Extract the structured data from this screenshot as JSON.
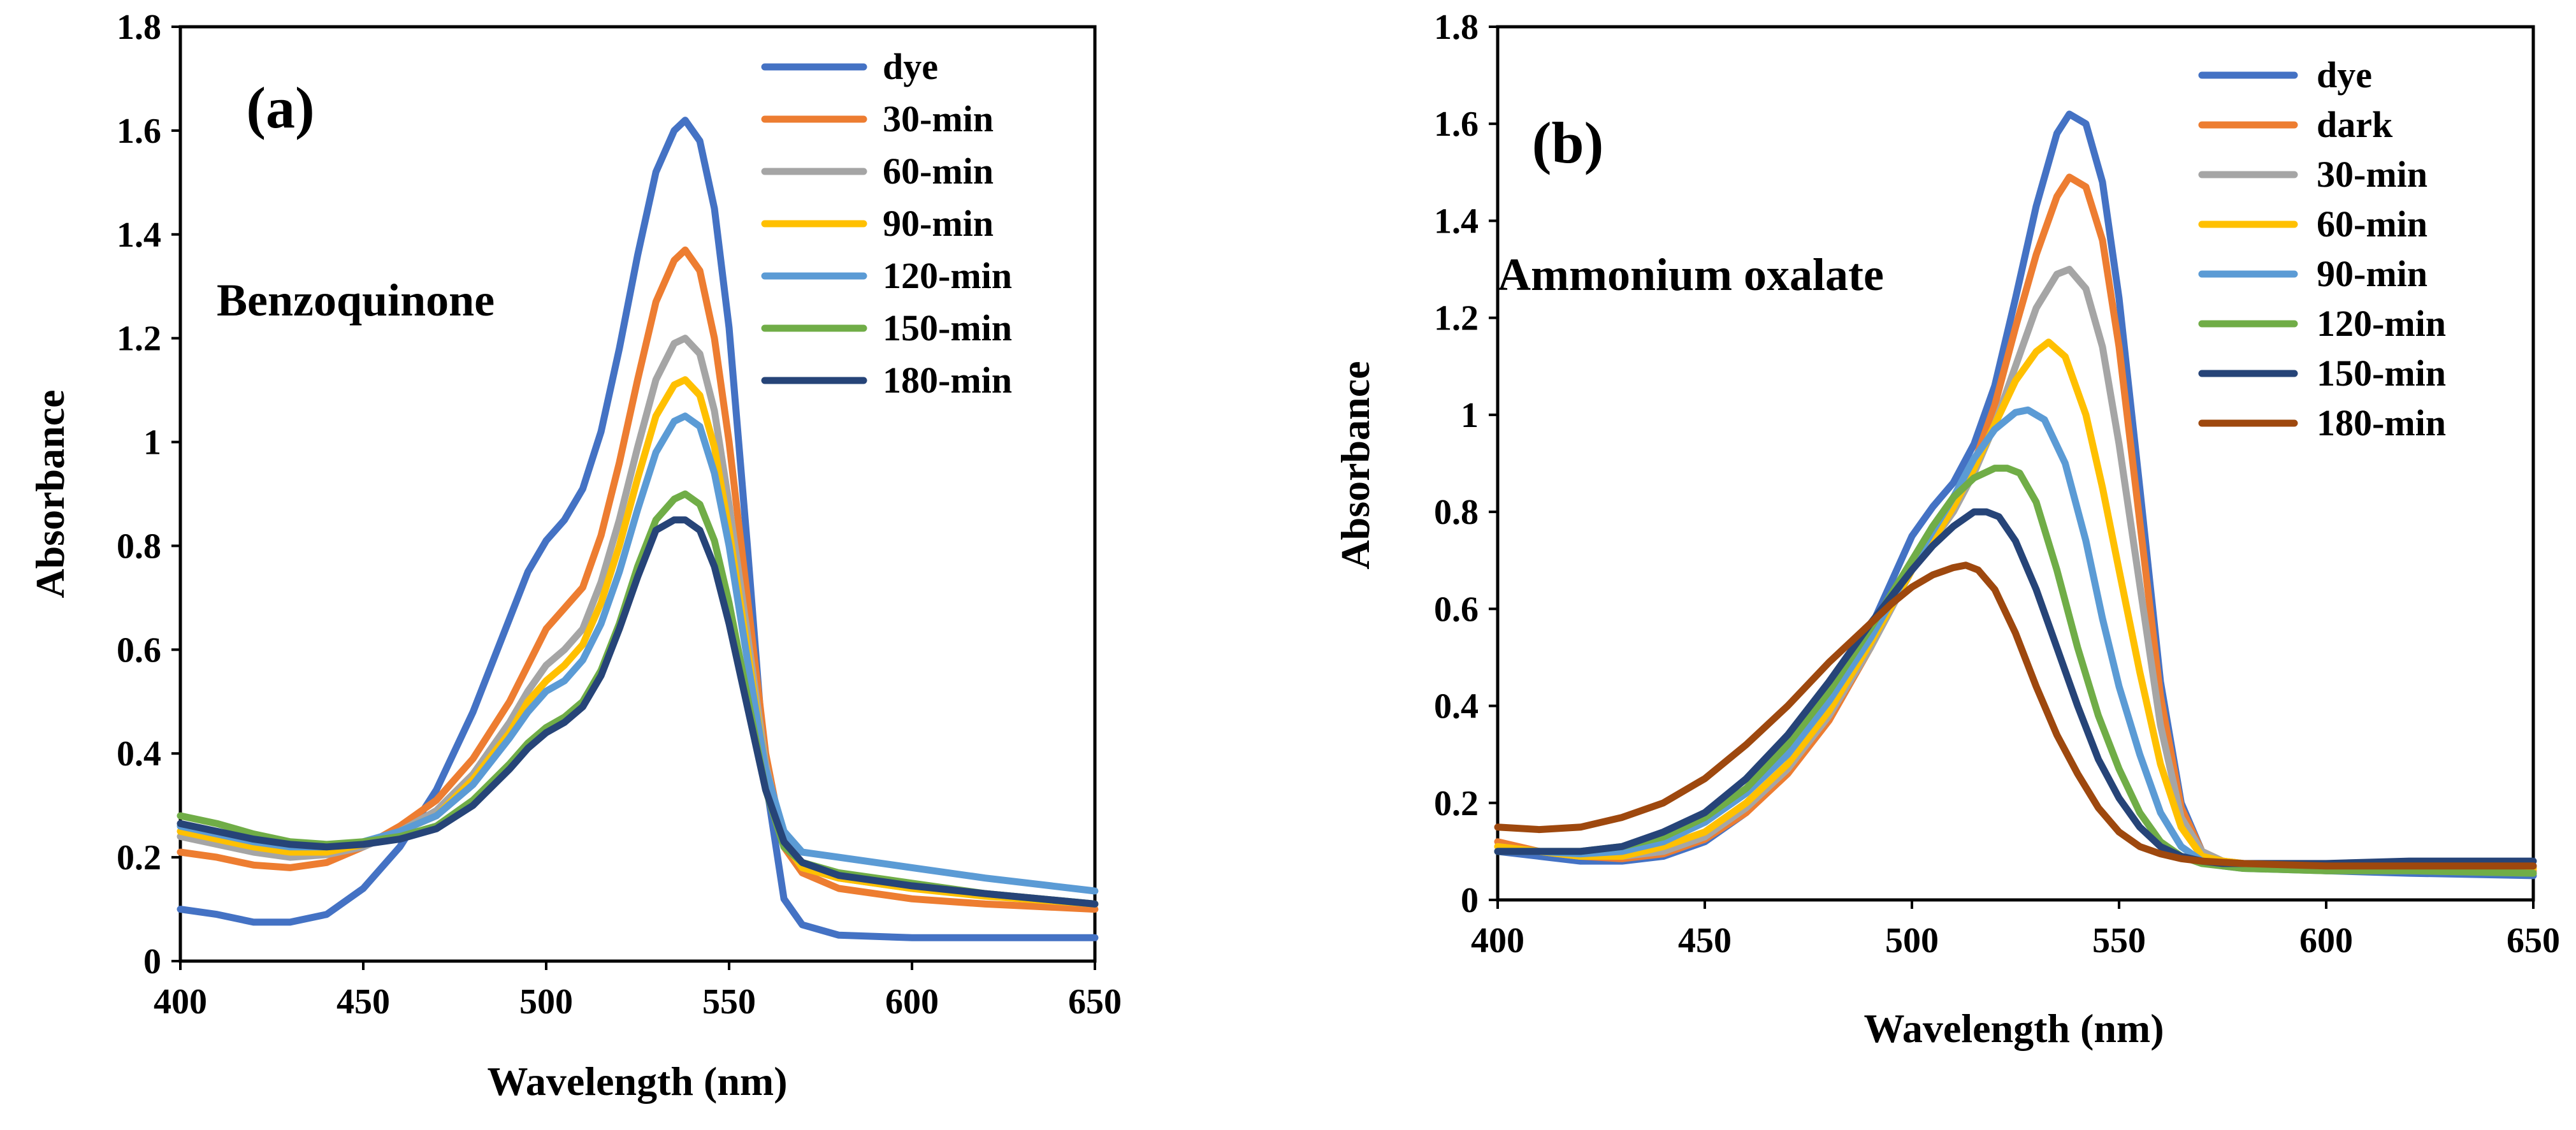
{
  "chart_data": [
    {
      "type": "line",
      "panel_label": "(a)",
      "annotation": "Benzoquinone",
      "title": "",
      "xlabel": "Wavelength (nm)",
      "ylabel": "Absorbance",
      "xlim": [
        400,
        650
      ],
      "ylim": [
        0,
        1.8
      ],
      "xticks": [
        "400",
        "450",
        "500",
        "550",
        "600",
        "650"
      ],
      "yticks": [
        "0",
        "0.2",
        "0.4",
        "0.6",
        "0.8",
        "1",
        "1.2",
        "1.4",
        "1.6",
        "1.8"
      ],
      "legend_position": "top-right",
      "series": [
        {
          "name": "dye",
          "color": "#4472C4",
          "x": [
            400,
            410,
            420,
            430,
            440,
            450,
            460,
            470,
            480,
            490,
            495,
            500,
            505,
            510,
            515,
            520,
            525,
            530,
            535,
            538,
            542,
            546,
            550,
            555,
            560,
            565,
            570,
            580,
            600,
            620,
            650
          ],
          "y": [
            0.1,
            0.09,
            0.075,
            0.075,
            0.09,
            0.14,
            0.22,
            0.33,
            0.48,
            0.66,
            0.75,
            0.81,
            0.85,
            0.91,
            1.02,
            1.18,
            1.36,
            1.52,
            1.6,
            1.62,
            1.58,
            1.45,
            1.22,
            0.8,
            0.35,
            0.12,
            0.07,
            0.05,
            0.045,
            0.045,
            0.045
          ]
        },
        {
          "name": "30-min",
          "color": "#ED7D31",
          "x": [
            400,
            410,
            420,
            430,
            440,
            450,
            460,
            470,
            480,
            490,
            495,
            500,
            505,
            510,
            515,
            520,
            525,
            530,
            535,
            538,
            542,
            546,
            550,
            555,
            560,
            565,
            570,
            580,
            600,
            620,
            650
          ],
          "y": [
            0.21,
            0.2,
            0.185,
            0.18,
            0.19,
            0.22,
            0.26,
            0.31,
            0.39,
            0.5,
            0.57,
            0.64,
            0.68,
            0.72,
            0.82,
            0.96,
            1.12,
            1.27,
            1.35,
            1.37,
            1.33,
            1.2,
            1.0,
            0.7,
            0.4,
            0.22,
            0.17,
            0.14,
            0.12,
            0.11,
            0.1
          ]
        },
        {
          "name": "60-min",
          "color": "#A5A5A5",
          "x": [
            400,
            410,
            420,
            430,
            440,
            450,
            460,
            470,
            480,
            490,
            495,
            500,
            505,
            510,
            515,
            520,
            525,
            530,
            535,
            538,
            542,
            546,
            550,
            555,
            560,
            565,
            570,
            580,
            600,
            620,
            650
          ],
          "y": [
            0.24,
            0.225,
            0.21,
            0.2,
            0.205,
            0.22,
            0.25,
            0.29,
            0.36,
            0.46,
            0.52,
            0.57,
            0.6,
            0.64,
            0.73,
            0.85,
            0.99,
            1.12,
            1.19,
            1.2,
            1.17,
            1.06,
            0.88,
            0.63,
            0.38,
            0.23,
            0.18,
            0.16,
            0.14,
            0.13,
            0.11
          ]
        },
        {
          "name": "90-min",
          "color": "#FFC000",
          "x": [
            400,
            410,
            420,
            430,
            440,
            450,
            460,
            470,
            480,
            490,
            495,
            500,
            505,
            510,
            515,
            520,
            525,
            530,
            535,
            538,
            542,
            546,
            550,
            555,
            560,
            565,
            570,
            580,
            600,
            620,
            650
          ],
          "y": [
            0.25,
            0.235,
            0.22,
            0.21,
            0.21,
            0.225,
            0.25,
            0.28,
            0.35,
            0.44,
            0.5,
            0.54,
            0.57,
            0.61,
            0.69,
            0.8,
            0.93,
            1.05,
            1.11,
            1.12,
            1.09,
            0.99,
            0.83,
            0.6,
            0.37,
            0.23,
            0.18,
            0.16,
            0.14,
            0.125,
            0.11
          ]
        },
        {
          "name": "120-min",
          "color": "#5B9BD5",
          "x": [
            400,
            410,
            420,
            430,
            440,
            450,
            460,
            470,
            480,
            490,
            495,
            500,
            505,
            510,
            515,
            520,
            525,
            530,
            535,
            538,
            542,
            546,
            550,
            555,
            560,
            565,
            570,
            580,
            600,
            620,
            650
          ],
          "y": [
            0.26,
            0.245,
            0.23,
            0.22,
            0.22,
            0.23,
            0.25,
            0.28,
            0.34,
            0.43,
            0.48,
            0.52,
            0.54,
            0.58,
            0.65,
            0.75,
            0.87,
            0.98,
            1.04,
            1.05,
            1.03,
            0.94,
            0.8,
            0.58,
            0.37,
            0.25,
            0.21,
            0.2,
            0.18,
            0.16,
            0.135
          ]
        },
        {
          "name": "150-min",
          "color": "#70AD47",
          "x": [
            400,
            410,
            420,
            430,
            440,
            450,
            460,
            470,
            480,
            490,
            495,
            500,
            505,
            510,
            515,
            520,
            525,
            530,
            535,
            538,
            542,
            546,
            550,
            555,
            560,
            565,
            570,
            580,
            600,
            620,
            650
          ],
          "y": [
            0.28,
            0.265,
            0.245,
            0.23,
            0.225,
            0.23,
            0.24,
            0.26,
            0.31,
            0.38,
            0.42,
            0.45,
            0.47,
            0.5,
            0.56,
            0.65,
            0.76,
            0.85,
            0.89,
            0.9,
            0.88,
            0.81,
            0.69,
            0.51,
            0.33,
            0.22,
            0.19,
            0.17,
            0.15,
            0.13,
            0.11
          ]
        },
        {
          "name": "180-min",
          "color": "#264478",
          "x": [
            400,
            410,
            420,
            430,
            440,
            450,
            460,
            470,
            480,
            490,
            495,
            500,
            505,
            510,
            515,
            520,
            525,
            530,
            535,
            538,
            542,
            546,
            550,
            555,
            560,
            565,
            570,
            580,
            600,
            620,
            650
          ],
          "y": [
            0.265,
            0.25,
            0.235,
            0.225,
            0.22,
            0.225,
            0.235,
            0.255,
            0.3,
            0.37,
            0.41,
            0.44,
            0.46,
            0.49,
            0.55,
            0.64,
            0.74,
            0.83,
            0.85,
            0.85,
            0.83,
            0.76,
            0.65,
            0.49,
            0.33,
            0.23,
            0.19,
            0.165,
            0.145,
            0.13,
            0.11
          ]
        }
      ]
    },
    {
      "type": "line",
      "panel_label": "(b)",
      "annotation": "Ammonium oxalate",
      "title": "",
      "xlabel": "Wavelength (nm)",
      "ylabel": "Absorbance",
      "xlim": [
        400,
        650
      ],
      "ylim": [
        0,
        1.8
      ],
      "xticks": [
        "400",
        "450",
        "500",
        "550",
        "600",
        "650"
      ],
      "yticks": [
        "0",
        "0.2",
        "0.4",
        "0.6",
        "0.8",
        "1",
        "1.2",
        "1.4",
        "1.6",
        "1.8"
      ],
      "legend_position": "top-right",
      "series": [
        {
          "name": "dye",
          "color": "#4472C4",
          "x": [
            400,
            410,
            420,
            430,
            440,
            450,
            460,
            470,
            480,
            490,
            500,
            505,
            510,
            515,
            520,
            525,
            530,
            535,
            538,
            542,
            546,
            550,
            555,
            560,
            565,
            570,
            575,
            580,
            600,
            620,
            650
          ],
          "y": [
            0.1,
            0.09,
            0.08,
            0.08,
            0.09,
            0.12,
            0.18,
            0.27,
            0.39,
            0.56,
            0.75,
            0.81,
            0.86,
            0.94,
            1.06,
            1.24,
            1.43,
            1.58,
            1.62,
            1.6,
            1.48,
            1.24,
            0.85,
            0.45,
            0.2,
            0.1,
            0.075,
            0.07,
            0.06,
            0.055,
            0.05
          ]
        },
        {
          "name": "dark",
          "color": "#ED7D31",
          "x": [
            400,
            410,
            420,
            430,
            440,
            450,
            460,
            470,
            480,
            490,
            500,
            505,
            510,
            515,
            520,
            525,
            530,
            535,
            538,
            542,
            546,
            550,
            555,
            560,
            565,
            570,
            575,
            580,
            600,
            620,
            650
          ],
          "y": [
            0.12,
            0.1,
            0.09,
            0.085,
            0.095,
            0.125,
            0.18,
            0.26,
            0.37,
            0.52,
            0.7,
            0.76,
            0.82,
            0.9,
            1.02,
            1.18,
            1.33,
            1.45,
            1.49,
            1.47,
            1.36,
            1.14,
            0.78,
            0.42,
            0.19,
            0.1,
            0.08,
            0.075,
            0.065,
            0.065,
            0.06
          ]
        },
        {
          "name": "30-min",
          "color": "#A5A5A5",
          "x": [
            400,
            410,
            420,
            430,
            440,
            450,
            460,
            470,
            480,
            490,
            500,
            505,
            510,
            515,
            520,
            525,
            530,
            535,
            538,
            542,
            546,
            550,
            555,
            560,
            565,
            570,
            575,
            580,
            600,
            620,
            650
          ],
          "y": [
            0.11,
            0.1,
            0.09,
            0.09,
            0.1,
            0.13,
            0.19,
            0.27,
            0.38,
            0.52,
            0.68,
            0.74,
            0.8,
            0.88,
            0.98,
            1.1,
            1.22,
            1.29,
            1.3,
            1.26,
            1.14,
            0.94,
            0.65,
            0.36,
            0.17,
            0.1,
            0.08,
            0.075,
            0.07,
            0.07,
            0.065
          ]
        },
        {
          "name": "60-min",
          "color": "#FFC000",
          "x": [
            400,
            410,
            420,
            430,
            440,
            450,
            460,
            470,
            480,
            490,
            500,
            505,
            510,
            515,
            520,
            525,
            530,
            533,
            537,
            542,
            546,
            550,
            555,
            560,
            565,
            570,
            575,
            580,
            600,
            620,
            650
          ],
          "y": [
            0.11,
            0.1,
            0.09,
            0.09,
            0.11,
            0.14,
            0.2,
            0.28,
            0.39,
            0.53,
            0.68,
            0.74,
            0.81,
            0.89,
            0.98,
            1.07,
            1.13,
            1.15,
            1.12,
            1.0,
            0.85,
            0.68,
            0.47,
            0.28,
            0.15,
            0.09,
            0.08,
            0.075,
            0.07,
            0.07,
            0.065
          ]
        },
        {
          "name": "90-min",
          "color": "#5B9BD5",
          "x": [
            400,
            410,
            420,
            430,
            440,
            450,
            460,
            470,
            480,
            490,
            500,
            505,
            510,
            515,
            520,
            525,
            528,
            532,
            537,
            542,
            546,
            550,
            555,
            560,
            565,
            570,
            575,
            580,
            600,
            620,
            650
          ],
          "y": [
            0.1,
            0.1,
            0.095,
            0.1,
            0.12,
            0.16,
            0.22,
            0.3,
            0.41,
            0.54,
            0.69,
            0.76,
            0.83,
            0.91,
            0.97,
            1.005,
            1.01,
            0.99,
            0.9,
            0.74,
            0.58,
            0.44,
            0.3,
            0.18,
            0.11,
            0.08,
            0.07,
            0.065,
            0.06,
            0.06,
            0.055
          ]
        },
        {
          "name": "120-min",
          "color": "#70AD47",
          "x": [
            400,
            410,
            420,
            430,
            440,
            450,
            460,
            470,
            480,
            490,
            500,
            505,
            510,
            515,
            520,
            523,
            526,
            530,
            535,
            540,
            545,
            550,
            555,
            560,
            565,
            570,
            575,
            580,
            600,
            620,
            650
          ],
          "y": [
            0.1,
            0.1,
            0.1,
            0.11,
            0.13,
            0.17,
            0.23,
            0.32,
            0.43,
            0.56,
            0.7,
            0.77,
            0.83,
            0.87,
            0.89,
            0.89,
            0.88,
            0.82,
            0.68,
            0.52,
            0.38,
            0.27,
            0.18,
            0.12,
            0.09,
            0.075,
            0.07,
            0.065,
            0.06,
            0.06,
            0.055
          ]
        },
        {
          "name": "150-min",
          "color": "#264478",
          "x": [
            400,
            410,
            420,
            430,
            440,
            450,
            460,
            470,
            480,
            490,
            500,
            505,
            510,
            515,
            518,
            521,
            525,
            530,
            535,
            540,
            545,
            550,
            555,
            560,
            565,
            570,
            575,
            580,
            600,
            620,
            650
          ],
          "y": [
            0.1,
            0.1,
            0.1,
            0.11,
            0.14,
            0.18,
            0.25,
            0.34,
            0.45,
            0.57,
            0.68,
            0.73,
            0.77,
            0.8,
            0.8,
            0.79,
            0.74,
            0.64,
            0.52,
            0.4,
            0.29,
            0.21,
            0.15,
            0.11,
            0.09,
            0.08,
            0.075,
            0.075,
            0.075,
            0.08,
            0.08
          ]
        },
        {
          "name": "180-min",
          "color": "#9E480E",
          "x": [
            400,
            410,
            420,
            430,
            440,
            450,
            460,
            470,
            480,
            490,
            495,
            500,
            505,
            510,
            513,
            516,
            520,
            525,
            530,
            535,
            540,
            545,
            550,
            555,
            560,
            565,
            570,
            580,
            600,
            620,
            650
          ],
          "y": [
            0.15,
            0.145,
            0.15,
            0.17,
            0.2,
            0.25,
            0.32,
            0.4,
            0.49,
            0.57,
            0.61,
            0.645,
            0.67,
            0.685,
            0.69,
            0.68,
            0.64,
            0.55,
            0.44,
            0.34,
            0.26,
            0.19,
            0.14,
            0.11,
            0.095,
            0.085,
            0.08,
            0.075,
            0.07,
            0.07,
            0.07
          ]
        }
      ]
    }
  ]
}
